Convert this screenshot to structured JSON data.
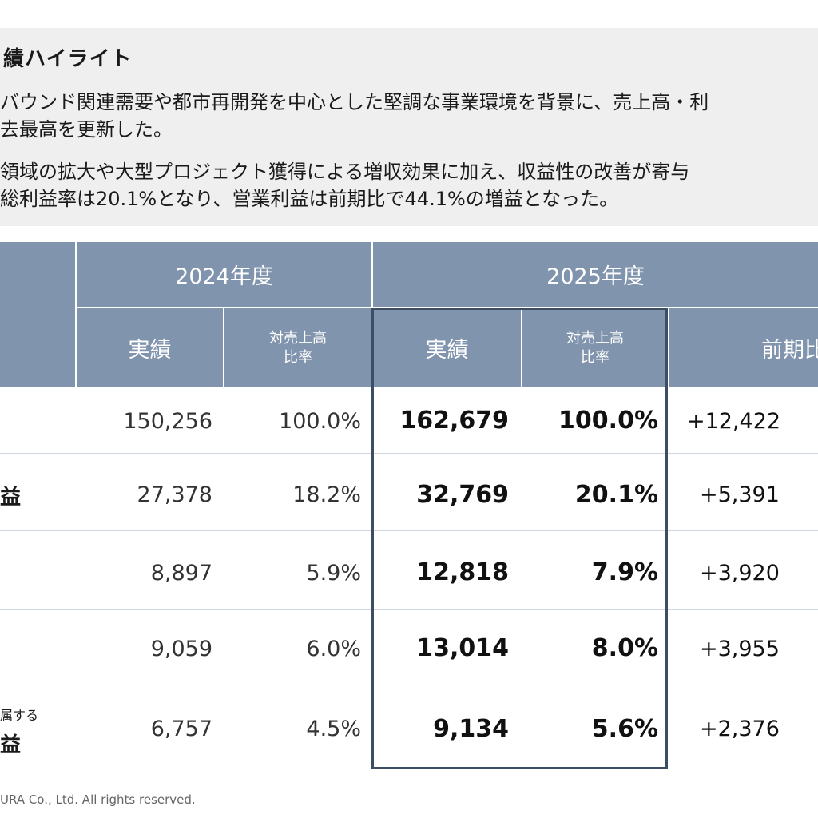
{
  "highlight": {
    "title": "績ハイライト",
    "line1": "バウンド関連需要や都市再開発を中心とした堅調な事業環境を背景に、売上高・利",
    "line2": "去最高を更新した。",
    "line3": "領域の拡大や大型プロジェクト獲得による増収効果に加え、収益性の改善が寄与",
    "line4": "総利益率は20.1%となり、営業利益は前期比で44.1%の増益となった。"
  },
  "table": {
    "header": {
      "fy2024": "2024年度",
      "fy2025": "2025年度",
      "actual_2024": "実績",
      "ratio_2024_l1": "対売上高",
      "ratio_2024_l2": "比率",
      "actual_2025": "実績",
      "ratio_2025_l1": "対売上高",
      "ratio_2025_l2": "比率",
      "prev_year": "前期比"
    },
    "rows": [
      {
        "label": "",
        "label_small": "",
        "v2024": "150,256",
        "r2024": "100.0%",
        "v2025": "162,679",
        "r2025": "100.0%",
        "diff": "+12,422"
      },
      {
        "label": "益",
        "label_small": "",
        "v2024": "27,378",
        "r2024": "18.2%",
        "v2025": "32,769",
        "r2025": "20.1%",
        "diff": "+5,391"
      },
      {
        "label": "",
        "label_small": "",
        "v2024": "8,897",
        "r2024": "5.9%",
        "v2025": "12,818",
        "r2025": "7.9%",
        "diff": "+3,920"
      },
      {
        "label": "",
        "label_small": "",
        "v2024": "9,059",
        "r2024": "6.0%",
        "v2025": "13,014",
        "r2025": "8.0%",
        "diff": "+3,955"
      },
      {
        "label": "益",
        "label_small": "属する",
        "v2024": "6,757",
        "r2024": "4.5%",
        "v2025": "9,134",
        "r2025": "5.6%",
        "diff": "+2,376"
      }
    ]
  },
  "footer": "URA Co., Ltd. All rights reserved.",
  "colors": {
    "header_bg": "#8194ad",
    "highlight_bg": "#efefef",
    "focus_frame": "#3d4d63"
  }
}
